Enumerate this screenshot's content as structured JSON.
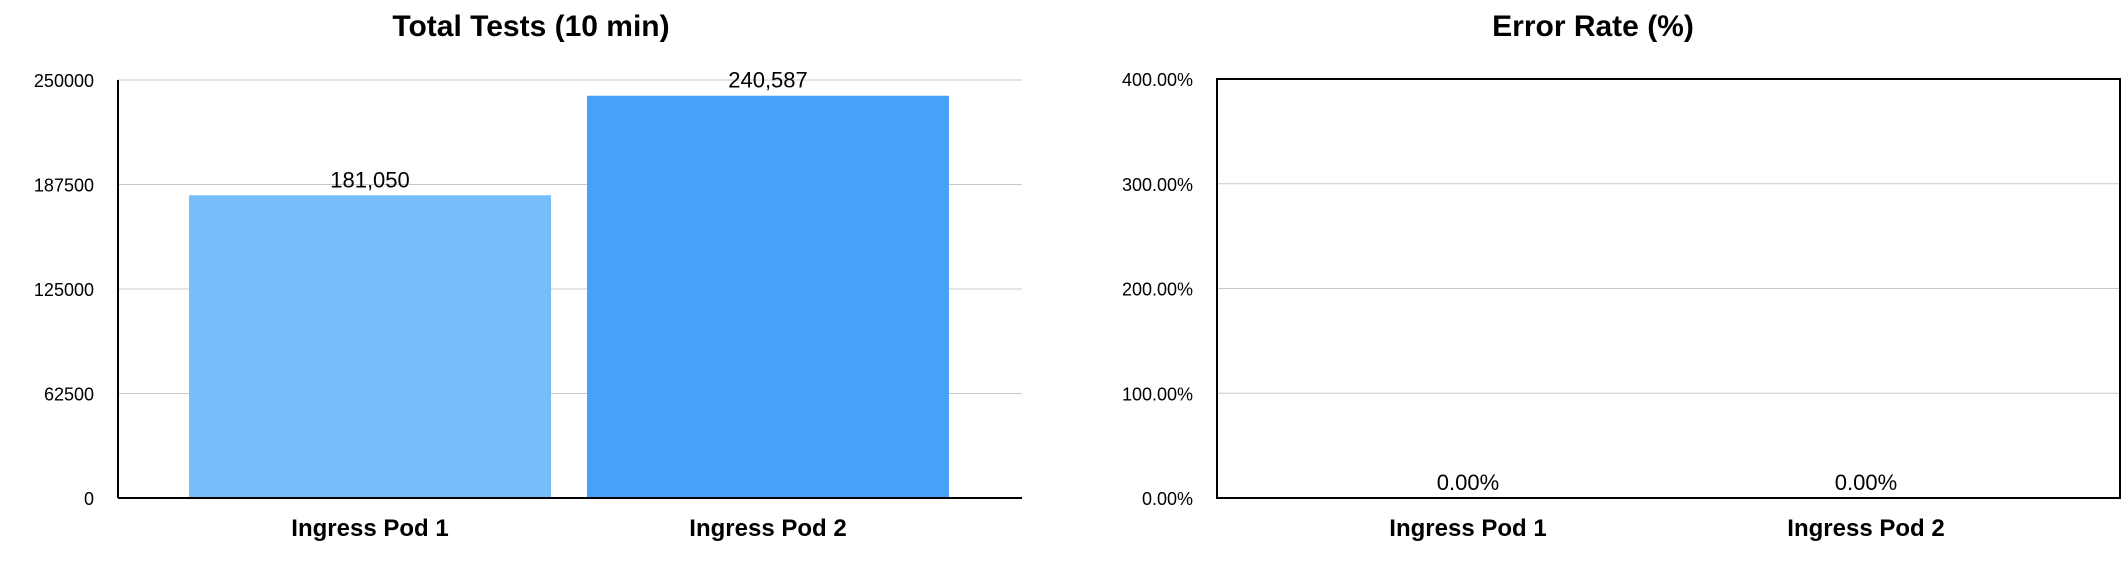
{
  "chart_data": [
    {
      "type": "bar",
      "title": "Total Tests (10 min)",
      "categories": [
        "Ingress Pod 1",
        "Ingress Pod 2"
      ],
      "values": [
        181050,
        240587
      ],
      "value_labels": [
        "181,050",
        "240,587"
      ],
      "yticks": [
        "0",
        "62500",
        "125000",
        "187500",
        "250000"
      ],
      "ylim": [
        0,
        250000
      ],
      "grid": true,
      "colors": [
        "#75BEFA",
        "#48A0F8"
      ]
    },
    {
      "type": "bar",
      "title": "Error Rate (%)",
      "categories": [
        "Ingress Pod 1",
        "Ingress Pod 2"
      ],
      "values": [
        0,
        0
      ],
      "value_labels": [
        "0.00%",
        "0.00%"
      ],
      "yticks": [
        "0.00%",
        "100.00%",
        "200.00%",
        "300.00%",
        "400.00%"
      ],
      "ylim": [
        0,
        400
      ],
      "grid": true,
      "frame": true,
      "colors": [
        "#75BEFA",
        "#48A0F8"
      ]
    }
  ]
}
